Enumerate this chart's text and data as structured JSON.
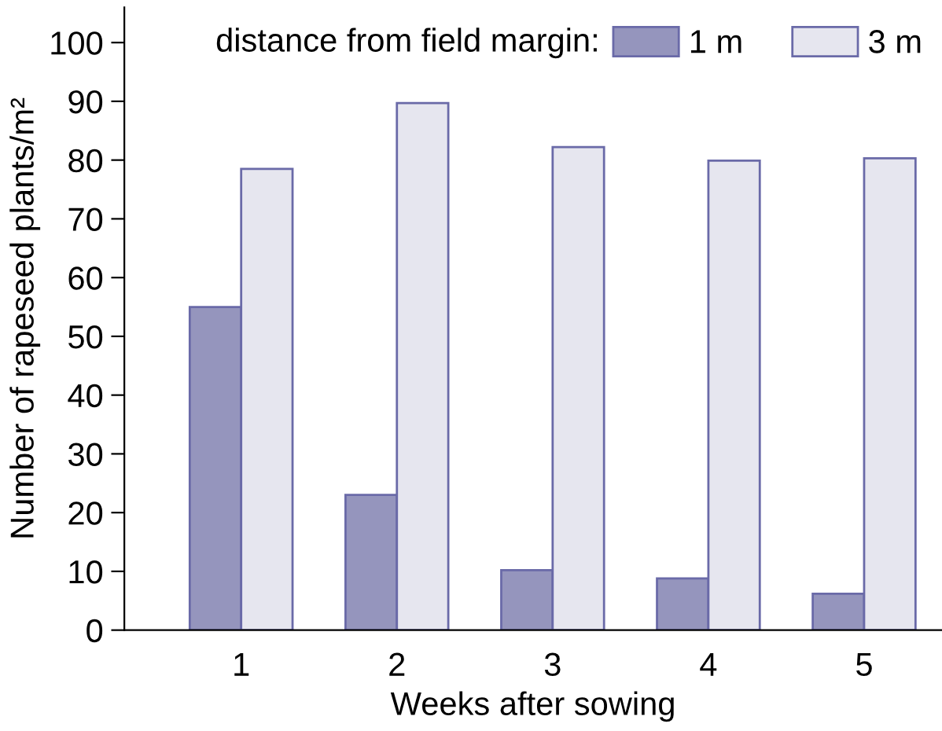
{
  "chart_data": {
    "type": "bar",
    "xlabel": "Weeks after sowing",
    "ylabel": "Number of rapeseed plants/m²",
    "categories": [
      "1",
      "2",
      "3",
      "4",
      "5"
    ],
    "series": [
      {
        "name": "1 m",
        "color": "#9595bd",
        "values": [
          55,
          23,
          10.2,
          8.8,
          6.2
        ]
      },
      {
        "name": "3 m",
        "color": "#e6e6ef",
        "values": [
          78.5,
          89.7,
          82.2,
          79.9,
          80.3
        ]
      }
    ],
    "legend_title": "distance from field margin:",
    "legend": "top right",
    "ylim": [
      0,
      106
    ],
    "yticks": [
      0,
      10,
      20,
      30,
      40,
      50,
      60,
      70,
      80,
      90,
      100
    ],
    "grid": false
  }
}
